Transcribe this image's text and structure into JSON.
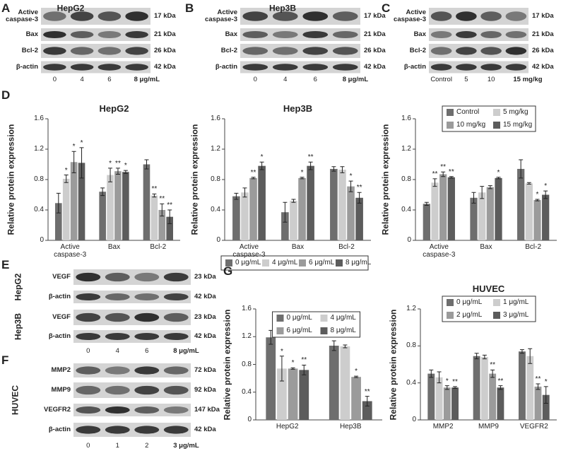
{
  "panel_labels": [
    "A",
    "B",
    "C",
    "D",
    "E",
    "F",
    "G"
  ],
  "blots": [
    {
      "title": "HepG2",
      "rows": [
        {
          "label": "Active caspase-3",
          "kda": "17 kDa"
        },
        {
          "label": "Bax",
          "kda": "21 kDa"
        },
        {
          "label": "Bcl-2",
          "kda": "26 kDa"
        },
        {
          "label": "β-actin",
          "kda": "42 kDa"
        }
      ],
      "lanes": [
        "0",
        "4",
        "6",
        "8 μg/mL"
      ]
    },
    {
      "title": "Hep3B",
      "rows": [
        {
          "label": "Active caspase-3",
          "kda": "17 kDa"
        },
        {
          "label": "Bax",
          "kda": "21 kDa"
        },
        {
          "label": "Bcl-2",
          "kda": "26 kDa"
        },
        {
          "label": "β-actin",
          "kda": "42 kDa"
        }
      ],
      "lanes": [
        "0",
        "4",
        "6",
        "8 μg/mL"
      ]
    },
    {
      "rows": [
        {
          "label": "Active caspase-3",
          "kda": "17 kDa"
        },
        {
          "label": "Bax",
          "kda": "21 kDa"
        },
        {
          "label": "Bcl-2",
          "kda": "26 kDa"
        },
        {
          "label": "β-actin",
          "kda": "42 kDa"
        }
      ],
      "lanes": [
        "Control",
        "5",
        "10",
        "15 mg/kg"
      ]
    },
    {
      "groups": [
        "HepG2",
        "Hep3B"
      ],
      "rows": [
        {
          "label": "VEGF",
          "kda": "23 kDa"
        },
        {
          "label": "β-actin",
          "kda": "42 kDa"
        },
        {
          "label": "VEGF",
          "kda": "23 kDa"
        },
        {
          "label": "β-actin",
          "kda": "42 kDa"
        }
      ],
      "lanes": [
        "0",
        "4",
        "6",
        "8 μg/mL"
      ]
    },
    {
      "groups": [
        "HUVEC"
      ],
      "rows": [
        {
          "label": "MMP2",
          "kda": "72 kDa"
        },
        {
          "label": "MMP9",
          "kda": "92 kDa"
        },
        {
          "label": "VEGFR2",
          "kda": "147 kDa"
        },
        {
          "label": "β-actin",
          "kda": "42 kDa"
        }
      ],
      "lanes": [
        "0",
        "1",
        "2",
        "3 μg/mL"
      ]
    }
  ],
  "chart_data": [
    {
      "type": "bar",
      "title": "HepG2",
      "y_label": "Relative protein expression",
      "categories": [
        "Active caspase-3",
        "Bax",
        "Bcl-2"
      ],
      "ylim": [
        0,
        1.6
      ],
      "yticks": [
        0,
        0.4,
        0.8,
        1.2,
        1.6
      ],
      "legend": "none",
      "series": [
        {
          "name": "0 μg/mL",
          "color": "#6e6e6e",
          "values": [
            0.49,
            0.64,
            1.0
          ],
          "errors": [
            0.13,
            0.05,
            0.06
          ],
          "significance": [
            null,
            null,
            null
          ]
        },
        {
          "name": "4 μg/mL",
          "color": "#cdcdcd",
          "values": [
            0.81,
            0.86,
            0.59
          ],
          "errors": [
            0.05,
            0.09,
            0.02
          ],
          "significance": [
            "*",
            "*",
            "**"
          ]
        },
        {
          "name": "6 μg/mL",
          "color": "#9b9b9b",
          "values": [
            1.03,
            0.91,
            0.4
          ],
          "errors": [
            0.14,
            0.04,
            0.08
          ],
          "significance": [
            "*",
            "**",
            "**"
          ]
        },
        {
          "name": "8 μg/mL",
          "color": "#5c5c5c",
          "values": [
            1.02,
            0.9,
            0.31
          ],
          "errors": [
            0.2,
            0.02,
            0.09
          ],
          "significance": [
            "*",
            "*",
            "**"
          ]
        }
      ]
    },
    {
      "type": "bar",
      "title": "Hep3B",
      "y_label": "Relative protein expression",
      "categories": [
        "Active caspase-3",
        "Bax",
        "Bcl-2"
      ],
      "ylim": [
        0,
        1.6
      ],
      "yticks": [
        0,
        0.4,
        0.8,
        1.2,
        1.6
      ],
      "legend": "below",
      "series": [
        {
          "name": "0 μg/mL",
          "color": "#6e6e6e",
          "values": [
            0.58,
            0.37,
            0.94
          ],
          "errors": [
            0.04,
            0.13,
            0.03
          ],
          "significance": [
            null,
            null,
            null
          ]
        },
        {
          "name": "4 μg/mL",
          "color": "#cdcdcd",
          "values": [
            0.63,
            0.52,
            0.93
          ],
          "errors": [
            0.06,
            0.02,
            0.04
          ],
          "significance": [
            null,
            null,
            null
          ]
        },
        {
          "name": "6 μg/mL",
          "color": "#9b9b9b",
          "values": [
            0.82,
            0.82,
            0.71
          ],
          "errors": [
            0.01,
            0.01,
            0.07
          ],
          "significance": [
            "**",
            "*",
            "*"
          ]
        },
        {
          "name": "8 μg/mL",
          "color": "#5c5c5c",
          "values": [
            0.98,
            0.98,
            0.56
          ],
          "errors": [
            0.05,
            0.05,
            0.07
          ],
          "significance": [
            "*",
            "**",
            "**"
          ]
        }
      ]
    },
    {
      "type": "bar",
      "y_label": "Relative protein expression",
      "categories": [
        "Active caspase-3",
        "Bax",
        "Bcl-2"
      ],
      "ylim": [
        0,
        1.6
      ],
      "yticks": [
        0,
        0.4,
        0.8,
        1.2,
        1.6
      ],
      "legend": "upper right",
      "series": [
        {
          "name": "Control",
          "color": "#6e6e6e",
          "values": [
            0.48,
            0.56,
            0.94
          ],
          "errors": [
            0.02,
            0.07,
            0.12
          ],
          "significance": [
            null,
            null,
            null
          ]
        },
        {
          "name": "5 mg/kg",
          "color": "#cdcdcd",
          "values": [
            0.76,
            0.63,
            0.75
          ],
          "errors": [
            0.05,
            0.08,
            0.01
          ],
          "significance": [
            "**",
            null,
            null
          ]
        },
        {
          "name": "10 mg/kg",
          "color": "#9b9b9b",
          "values": [
            0.87,
            0.7,
            0.53
          ],
          "errors": [
            0.03,
            0.02,
            0.01
          ],
          "significance": [
            "**",
            null,
            "*"
          ]
        },
        {
          "name": "15 mg/kg",
          "color": "#5c5c5c",
          "values": [
            0.83,
            0.82,
            0.6
          ],
          "errors": [
            0.01,
            0.01,
            0.05
          ],
          "significance": [
            "**",
            "*",
            "*"
          ]
        }
      ]
    },
    {
      "type": "bar",
      "y_label": "Relative protein expression",
      "categories": [
        "HepG2",
        "Hep3B"
      ],
      "ylim": [
        0,
        1.6
      ],
      "yticks": [
        0,
        0.4,
        0.8,
        1.2,
        1.6
      ],
      "legend": "upper center",
      "series": [
        {
          "name": "0 μg/mL",
          "color": "#6e6e6e",
          "values": [
            1.19,
            1.07
          ],
          "errors": [
            0.1,
            0.07
          ],
          "significance": [
            null,
            null
          ]
        },
        {
          "name": "4 μg/mL",
          "color": "#cdcdcd",
          "values": [
            0.74,
            1.06
          ],
          "errors": [
            0.18,
            0.02
          ],
          "significance": [
            "*",
            null
          ]
        },
        {
          "name": "6 μg/mL",
          "color": "#9b9b9b",
          "values": [
            0.74,
            0.62
          ],
          "errors": [
            0.01,
            0.01
          ],
          "significance": [
            "*",
            "*"
          ]
        },
        {
          "name": "8 μg/mL",
          "color": "#5c5c5c",
          "values": [
            0.72,
            0.27
          ],
          "errors": [
            0.07,
            0.07
          ],
          "significance": [
            "**",
            "**"
          ]
        }
      ]
    },
    {
      "type": "bar",
      "title": "HUVEC",
      "y_label": "Relative protein expression",
      "categories": [
        "MMP2",
        "MMP9",
        "VEGFR2"
      ],
      "ylim": [
        0,
        1.2
      ],
      "yticks": [
        0,
        0.4,
        0.8,
        1.2
      ],
      "legend": "upper right",
      "series": [
        {
          "name": "0 μg/mL",
          "color": "#6e6e6e",
          "values": [
            0.5,
            0.69,
            0.74
          ],
          "errors": [
            0.04,
            0.03,
            0.02
          ],
          "significance": [
            null,
            null,
            null
          ]
        },
        {
          "name": "1 μg/mL",
          "color": "#cdcdcd",
          "values": [
            0.46,
            0.68,
            0.69
          ],
          "errors": [
            0.06,
            0.02,
            0.08
          ],
          "significance": [
            null,
            null,
            null
          ]
        },
        {
          "name": "2 μg/mL",
          "color": "#9b9b9b",
          "values": [
            0.35,
            0.5,
            0.36
          ],
          "errors": [
            0.02,
            0.04,
            0.03
          ],
          "significance": [
            "*",
            "**",
            "**"
          ]
        },
        {
          "name": "3 μg/mL",
          "color": "#5c5c5c",
          "values": [
            0.35,
            0.35,
            0.27
          ],
          "errors": [
            0.01,
            0.02,
            0.09
          ],
          "significance": [
            "**",
            "**",
            "*"
          ]
        }
      ]
    }
  ]
}
